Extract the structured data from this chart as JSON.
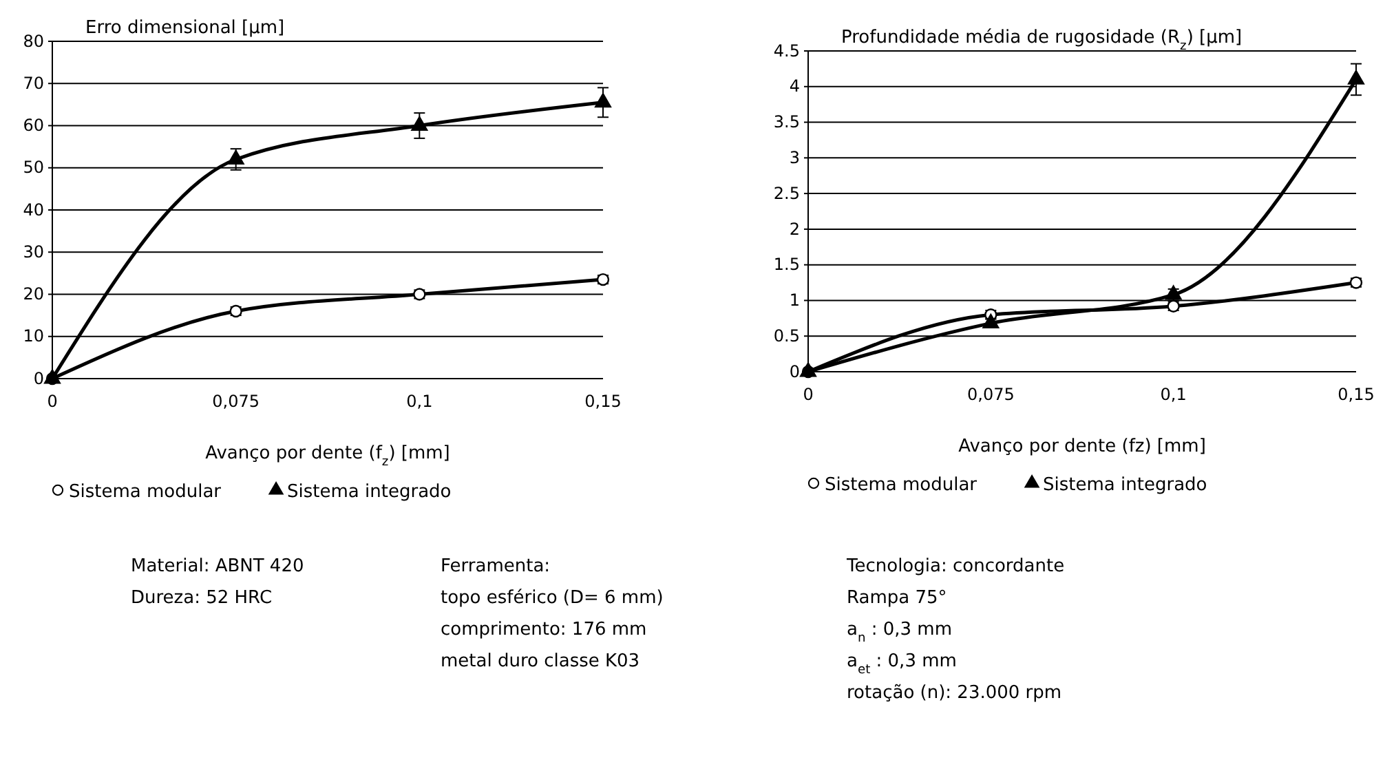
{
  "chart_data": [
    {
      "type": "line",
      "ylabel": "Erro dimensional [µm]",
      "xlabel": "Avanço por dente (f$_{z}$)  [mm]",
      "categories": [
        "0",
        "0,075",
        "0,1",
        "0,15"
      ],
      "ylim": [
        0,
        80
      ],
      "yticks": [
        0,
        10,
        20,
        30,
        40,
        50,
        60,
        70,
        80
      ],
      "grid": "y",
      "legend": "bottom",
      "line_style": "solid",
      "series": [
        {
          "name": "Sistema modular",
          "color": "#000000",
          "marker": "circle",
          "values": [
            0,
            16,
            20,
            23.5
          ],
          "errors": [
            null,
            1,
            1,
            1
          ]
        },
        {
          "name": "Sistema integrado",
          "color": "#000000",
          "marker": "triangle",
          "values": [
            0,
            52,
            60,
            65.5
          ],
          "errors": [
            null,
            2.5,
            3,
            3.5
          ]
        }
      ]
    },
    {
      "type": "line",
      "ylabel": "Profundidade média de rugosidade (R$_{z}$) [µm]",
      "xlabel": "Avanço por dente (fz) [mm]",
      "categories": [
        "0",
        "0,075",
        "0,1",
        "0,15"
      ],
      "ylim": [
        0,
        4.5
      ],
      "yticks": [
        0,
        0.5,
        1,
        1.5,
        2,
        2.5,
        3,
        3.5,
        4,
        4.5
      ],
      "grid": "y",
      "legend": "bottom",
      "line_style": "solid",
      "series": [
        {
          "name": "Sistema modular",
          "color": "#000000",
          "marker": "circle",
          "values": [
            0,
            0.8,
            0.92,
            1.25
          ],
          "errors": [
            null,
            0.06,
            0.06,
            0.06
          ]
        },
        {
          "name": "Sistema integrado",
          "color": "#000000",
          "marker": "triangle",
          "values": [
            0,
            0.68,
            1.08,
            4.1
          ],
          "errors": [
            null,
            0.06,
            0.08,
            0.22
          ]
        }
      ]
    },
    {
      "type": "other",
      "annotations": [
        "Material: ABNT 420\nDureza: 52 HRC",
        "Ferramenta:\ntopo esférico (D= 6 mm)\ncomprimento: 176 mm\nmetal duro classe K03",
        "Tecnologia: concordante\nRampa 75°\na$_{n}$ :  0,3 mm\na$_{et}$ : 0,3 mm\nrotação (n): 23.000 rpm"
      ]
    }
  ]
}
